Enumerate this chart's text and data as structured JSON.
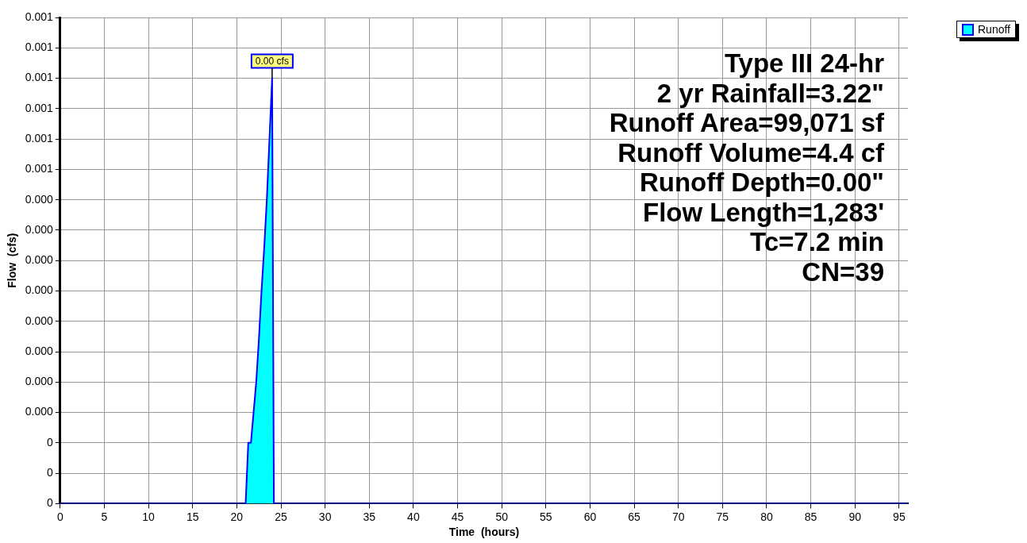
{
  "chart_data": {
    "type": "area",
    "xlabel": "Time  (hours)",
    "ylabel": "Flow  (cfs)",
    "x": [
      0,
      21,
      21.3,
      21.6,
      21.9,
      22.2,
      22.5,
      22.8,
      23.1,
      23.4,
      23.7,
      24.0,
      24.2,
      96
    ],
    "series": [
      {
        "name": "Runoff",
        "color": "#00ffff",
        "values": [
          0,
          0,
          0.0001,
          0.0001,
          0.00015,
          0.0002,
          0.00027,
          0.00035,
          0.00042,
          0.0005,
          0.0006,
          0.0007,
          0,
          0
        ],
        "value_labels": [
          null,
          null,
          null,
          null,
          null,
          null,
          null,
          null,
          null,
          null,
          null,
          "0.00 cfs",
          null,
          null
        ]
      }
    ],
    "xlim": [
      0,
      96
    ],
    "xticks": [
      0,
      5,
      10,
      15,
      20,
      25,
      30,
      35,
      40,
      45,
      50,
      55,
      60,
      65,
      70,
      75,
      80,
      85,
      90,
      95
    ],
    "ylim": [
      0,
      0.0008
    ],
    "yticks": [
      {
        "value": 0,
        "label": "0"
      },
      {
        "value": 5e-05,
        "label": "0"
      },
      {
        "value": 0.0001,
        "label": "0"
      },
      {
        "value": 0.00015,
        "label": "0.000"
      },
      {
        "value": 0.0002,
        "label": "0.000"
      },
      {
        "value": 0.00025,
        "label": "0.000"
      },
      {
        "value": 0.0003,
        "label": "0.000"
      },
      {
        "value": 0.00035,
        "label": "0.000"
      },
      {
        "value": 0.0004,
        "label": "0.000"
      },
      {
        "value": 0.00045,
        "label": "0.000"
      },
      {
        "value": 0.0005,
        "label": "0.000"
      },
      {
        "value": 0.00055,
        "label": "0.001"
      },
      {
        "value": 0.0006,
        "label": "0.001"
      },
      {
        "value": 0.00065,
        "label": "0.001"
      },
      {
        "value": 0.0007,
        "label": "0.001"
      },
      {
        "value": 0.00075,
        "label": "0.001"
      },
      {
        "value": 0.0008,
        "label": "0.001"
      }
    ],
    "grid": true,
    "legend": "top right",
    "line_style": "solid",
    "annotations": [
      "Type III 24-hr",
      "2 yr Rainfall=3.22\"",
      "Runoff Area=99,071 sf",
      "Runoff Volume=4.4 cf",
      "Runoff Depth=0.00\"",
      "Flow Length=1,283'",
      "Tc=7.2 min",
      "CN=39"
    ]
  }
}
